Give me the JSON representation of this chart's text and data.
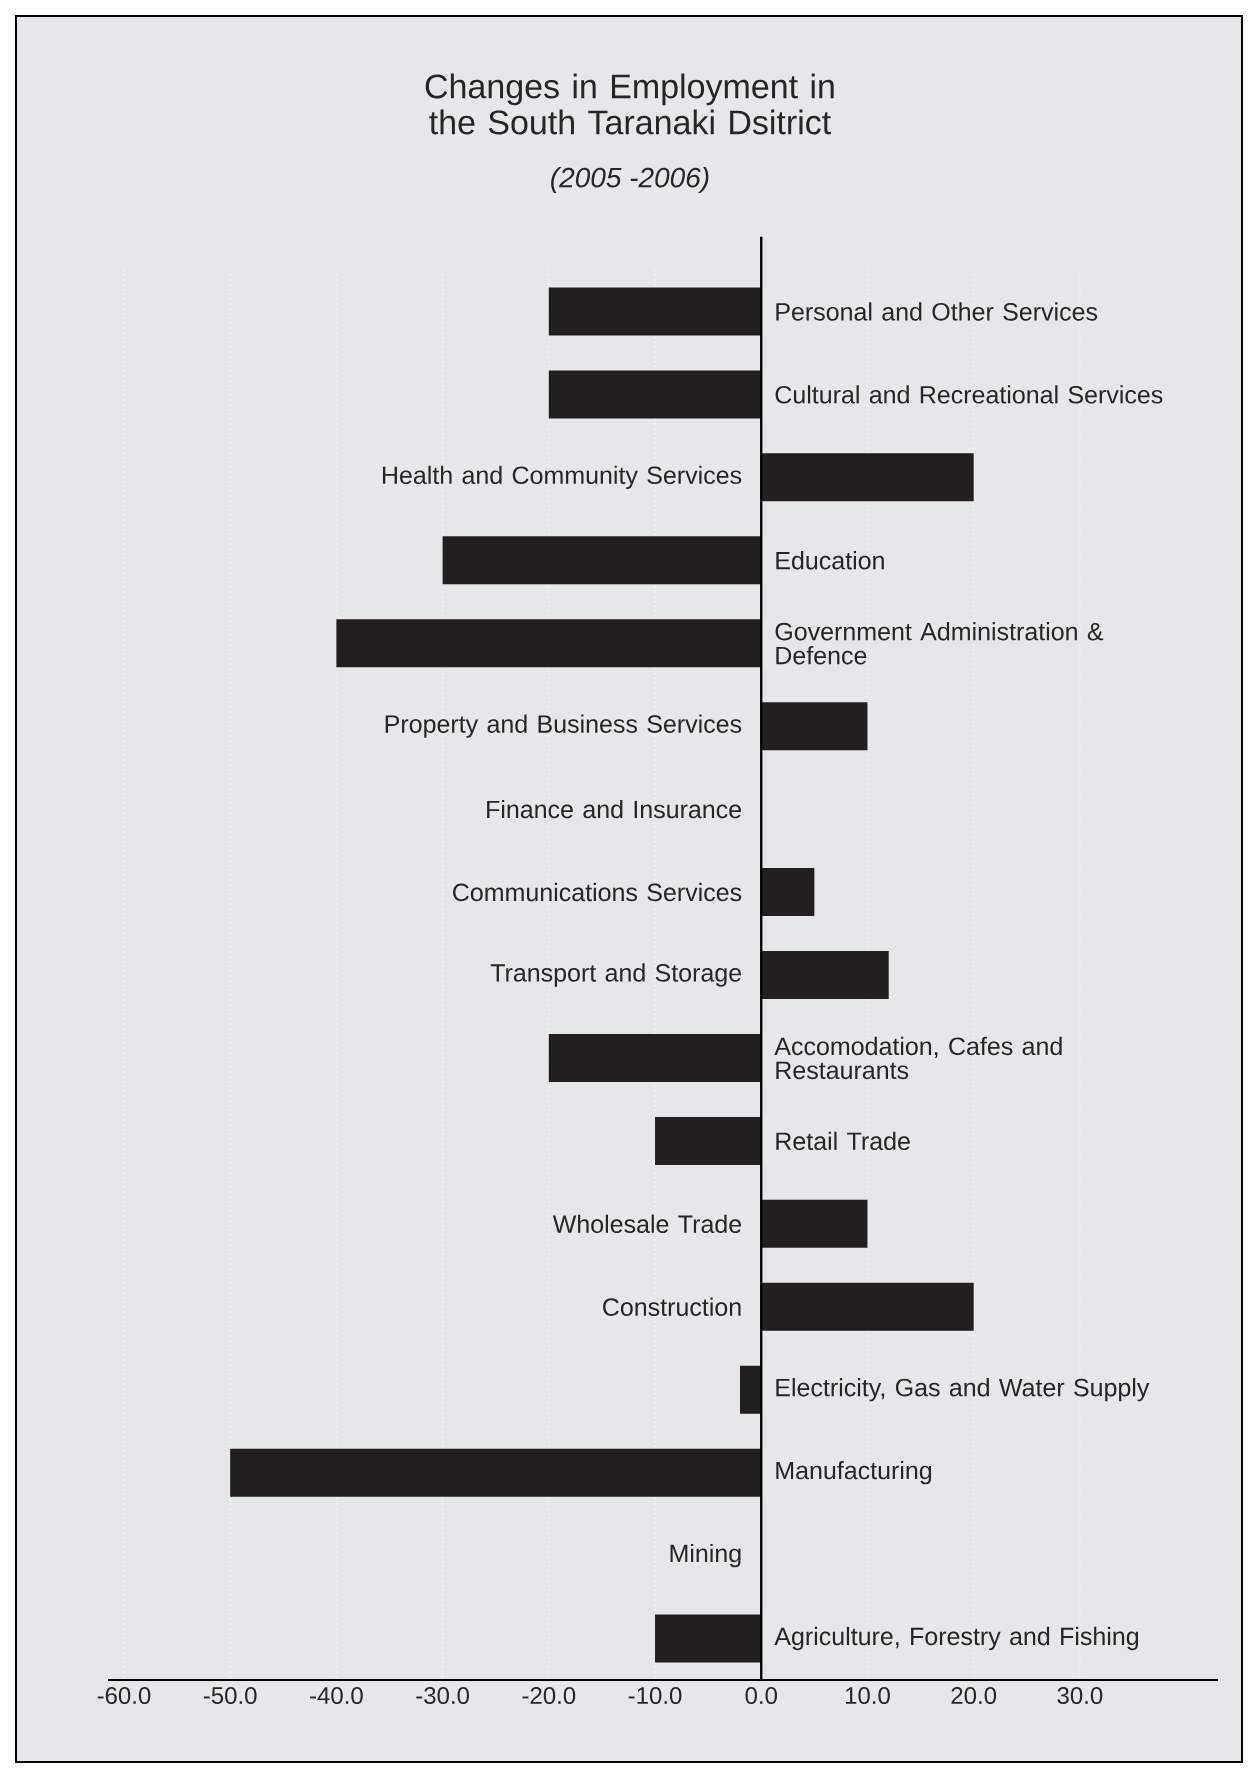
{
  "chart_data": {
    "type": "bar",
    "orientation": "horizontal",
    "title": "Changes in Employment in the South Taranaki Dsitrict",
    "subtitle": "(2005 -2006)",
    "categories": [
      "Personal and Other Services",
      "Cultural and Recreational Services",
      "Health and Community Services",
      "Education",
      "Government Administration & Defence",
      "Property and Business Services",
      "Finance and Insurance",
      "Communications Services",
      "Transport and Storage",
      "Accomodation, Cafes and Restaurants",
      "Retail Trade",
      "Wholesale Trade",
      "Construction",
      "Electricity, Gas and Water Supply",
      "Manufacturing",
      "Mining",
      "Agriculture, Forestry and Fishing"
    ],
    "values": [
      -20,
      -20,
      20,
      -30,
      -40,
      10,
      0,
      5,
      12,
      -20,
      -10,
      10,
      20,
      -2,
      -50,
      0,
      -10
    ],
    "color": "#231f20",
    "xlim": [
      -61.5,
      43
    ],
    "xticks": [
      {
        "value": -60,
        "label": "-60.0"
      },
      {
        "value": -50,
        "label": "-50.0"
      },
      {
        "value": -40,
        "label": "-40.0"
      },
      {
        "value": -30,
        "label": "-30.0"
      },
      {
        "value": -20,
        "label": "-20.0"
      },
      {
        "value": -10,
        "label": "-10.0"
      },
      {
        "value": 0,
        "label": "0.0"
      },
      {
        "value": 10,
        "label": "10.0"
      },
      {
        "value": 20,
        "label": "20.0"
      },
      {
        "value": 30,
        "label": "30.0"
      }
    ],
    "grid": "x"
  }
}
